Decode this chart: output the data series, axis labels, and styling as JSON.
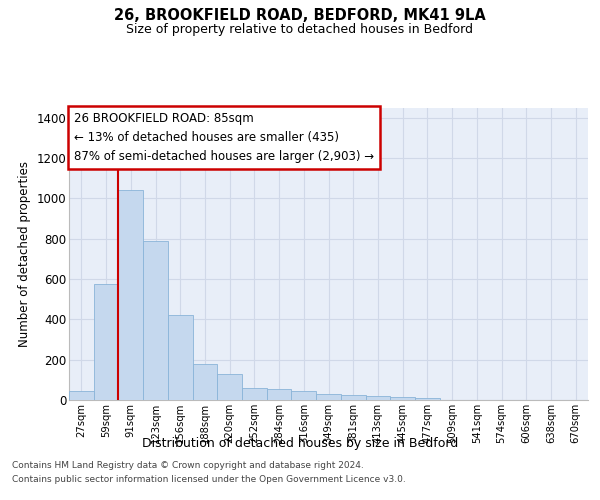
{
  "title_line1": "26, BROOKFIELD ROAD, BEDFORD, MK41 9LA",
  "title_line2": "Size of property relative to detached houses in Bedford",
  "xlabel": "Distribution of detached houses by size in Bedford",
  "ylabel": "Number of detached properties",
  "categories": [
    "27sqm",
    "59sqm",
    "91sqm",
    "123sqm",
    "156sqm",
    "188sqm",
    "220sqm",
    "252sqm",
    "284sqm",
    "316sqm",
    "349sqm",
    "381sqm",
    "413sqm",
    "445sqm",
    "477sqm",
    "509sqm",
    "541sqm",
    "574sqm",
    "606sqm",
    "638sqm",
    "670sqm"
  ],
  "values": [
    45,
    575,
    1040,
    790,
    420,
    180,
    130,
    60,
    55,
    45,
    30,
    27,
    20,
    17,
    12,
    0,
    0,
    0,
    0,
    0,
    0
  ],
  "bar_color": "#c5d8ee",
  "bar_edge_color": "#8ab4d8",
  "vline_position": 1.5,
  "vline_color": "#cc0000",
  "annotation_text": "26 BROOKFIELD ROAD: 85sqm\n← 13% of detached houses are smaller (435)\n87% of semi-detached houses are larger (2,903) →",
  "annotation_box_edgecolor": "#cc0000",
  "annotation_bg_color": "white",
  "ylim_max": 1450,
  "yticks": [
    0,
    200,
    400,
    600,
    800,
    1000,
    1200,
    1400
  ],
  "grid_color": "#d0d8e8",
  "bg_color": "#e8eef8",
  "footer_line1": "Contains HM Land Registry data © Crown copyright and database right 2024.",
  "footer_line2": "Contains public sector information licensed under the Open Government Licence v3.0."
}
